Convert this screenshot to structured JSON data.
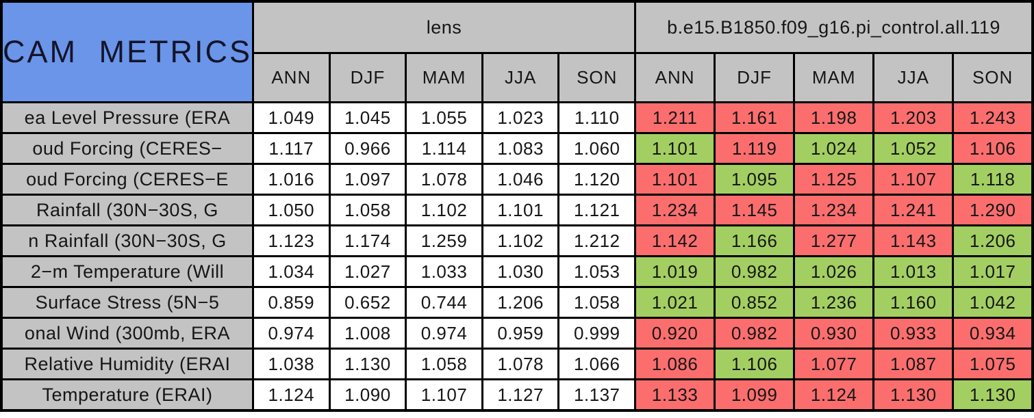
{
  "colors": {
    "header_blue": "#6a95e8",
    "header_gray": "#c3c3c3",
    "cell_white": "#ffffff",
    "cell_red": "#fc6e6e",
    "cell_green": "#a3cf62",
    "border_black": "#000000"
  },
  "chart_data": {
    "type": "table",
    "title": "CAM METRICS",
    "groups": [
      {
        "name": "lens",
        "seasons": [
          "ANN",
          "DJF",
          "MAM",
          "JJA",
          "SON"
        ]
      },
      {
        "name": "b.e15.B1850.f09_g16.pi_control.all.119",
        "seasons": [
          "ANN",
          "DJF",
          "MAM",
          "JJA",
          "SON"
        ]
      }
    ],
    "rows": [
      {
        "label": "ea Level Pressure (ERA",
        "lens": [
          "1.049",
          "1.045",
          "1.055",
          "1.023",
          "1.110"
        ],
        "control": [
          "1.211",
          "1.161",
          "1.198",
          "1.203",
          "1.243"
        ],
        "control_colors": [
          "red",
          "red",
          "red",
          "red",
          "red"
        ]
      },
      {
        "label": "oud Forcing (CERES−",
        "lens": [
          "1.117",
          "0.966",
          "1.114",
          "1.083",
          "1.060"
        ],
        "control": [
          "1.101",
          "1.119",
          "1.024",
          "1.052",
          "1.106"
        ],
        "control_colors": [
          "green",
          "red",
          "green",
          "green",
          "red"
        ]
      },
      {
        "label": "oud Forcing (CERES−E",
        "lens": [
          "1.016",
          "1.097",
          "1.078",
          "1.046",
          "1.120"
        ],
        "control": [
          "1.101",
          "1.095",
          "1.125",
          "1.107",
          "1.118"
        ],
        "control_colors": [
          "red",
          "green",
          "red",
          "red",
          "green"
        ]
      },
      {
        "label": "Rainfall (30N−30S, G",
        "lens": [
          "1.050",
          "1.058",
          "1.102",
          "1.101",
          "1.121"
        ],
        "control": [
          "1.234",
          "1.145",
          "1.234",
          "1.241",
          "1.290"
        ],
        "control_colors": [
          "red",
          "red",
          "red",
          "red",
          "red"
        ]
      },
      {
        "label": "n Rainfall (30N−30S, G",
        "lens": [
          "1.123",
          "1.174",
          "1.259",
          "1.102",
          "1.212"
        ],
        "control": [
          "1.142",
          "1.166",
          "1.277",
          "1.143",
          "1.206"
        ],
        "control_colors": [
          "red",
          "green",
          "red",
          "red",
          "green"
        ]
      },
      {
        "label": "2−m Temperature (Will",
        "lens": [
          "1.034",
          "1.027",
          "1.033",
          "1.030",
          "1.053"
        ],
        "control": [
          "1.019",
          "0.982",
          "1.026",
          "1.013",
          "1.017"
        ],
        "control_colors": [
          "green",
          "green",
          "green",
          "green",
          "green"
        ]
      },
      {
        "label": "Surface Stress (5N−5",
        "lens": [
          "0.859",
          "0.652",
          "0.744",
          "1.206",
          "1.058"
        ],
        "control": [
          "1.021",
          "0.852",
          "1.236",
          "1.160",
          "1.042"
        ],
        "control_colors": [
          "green",
          "green",
          "green",
          "green",
          "green"
        ]
      },
      {
        "label": "onal Wind (300mb, ERA",
        "lens": [
          "0.974",
          "1.008",
          "0.974",
          "0.959",
          "0.999"
        ],
        "control": [
          "0.920",
          "0.982",
          "0.930",
          "0.933",
          "0.934"
        ],
        "control_colors": [
          "red",
          "red",
          "red",
          "red",
          "red"
        ]
      },
      {
        "label": "Relative Humidity (ERAI",
        "lens": [
          "1.038",
          "1.130",
          "1.058",
          "1.078",
          "1.066"
        ],
        "control": [
          "1.086",
          "1.106",
          "1.077",
          "1.087",
          "1.075"
        ],
        "control_colors": [
          "red",
          "green",
          "red",
          "red",
          "red"
        ]
      },
      {
        "label": "Temperature (ERAI)",
        "lens": [
          "1.124",
          "1.090",
          "1.107",
          "1.127",
          "1.137"
        ],
        "control": [
          "1.133",
          "1.099",
          "1.124",
          "1.130",
          "1.130"
        ],
        "control_colors": [
          "red",
          "red",
          "red",
          "red",
          "green"
        ]
      }
    ]
  }
}
